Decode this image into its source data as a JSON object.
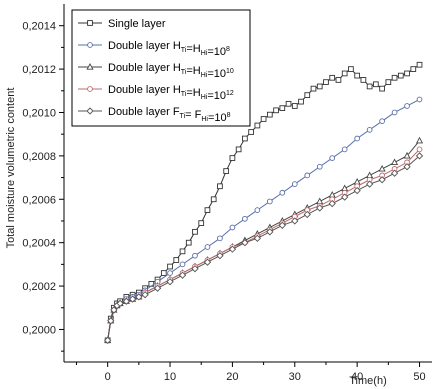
{
  "chart_data": {
    "type": "line",
    "title": "",
    "xlabel": "Time(h)",
    "ylabel": "Total moisture volumetric content",
    "xlim": [
      -7,
      52
    ],
    "ylim": [
      0.19985,
      0.2015
    ],
    "x_ticks": [
      0,
      10,
      20,
      30,
      40,
      50
    ],
    "x_tick_labels": [
      "0",
      "10",
      "20",
      "30",
      "40",
      "50"
    ],
    "y_ticks": [
      0.2,
      0.2002,
      0.2004,
      0.2006,
      0.2008,
      0.201,
      0.2012,
      0.2014
    ],
    "y_tick_labels": [
      "0,2000",
      "0,2002",
      "0,2004",
      "0,2006",
      "0,2008",
      "0,2010",
      "0,2012",
      "0,2014"
    ],
    "grid": false,
    "legend_position": "top-left",
    "series": [
      {
        "name": "Single layer",
        "legend": {
          "main": "Single layer",
          "parts": []
        },
        "marker": "square",
        "color": "#333333",
        "x": [
          0,
          0.5,
          1,
          1.5,
          2,
          3,
          4,
          5,
          6,
          7,
          8,
          9,
          10,
          11,
          12,
          13,
          14,
          15,
          16,
          17,
          18,
          19,
          20,
          21,
          22,
          23,
          24,
          25,
          26,
          27,
          28,
          29,
          30,
          31,
          32,
          33,
          34,
          35,
          36,
          37,
          38,
          39,
          40,
          41,
          42,
          43,
          44,
          45,
          46,
          47,
          48,
          49,
          50
        ],
        "y": [
          0.19995,
          0.20005,
          0.2001,
          0.20012,
          0.20013,
          0.20015,
          0.20016,
          0.20017,
          0.20019,
          0.20021,
          0.20023,
          0.20026,
          0.20029,
          0.20032,
          0.20036,
          0.2004,
          0.20045,
          0.20049,
          0.20055,
          0.2006,
          0.20066,
          0.20073,
          0.20079,
          0.20083,
          0.20088,
          0.20091,
          0.20094,
          0.20097,
          0.20099,
          0.20101,
          0.20102,
          0.20104,
          0.20103,
          0.20105,
          0.20108,
          0.20111,
          0.20112,
          0.20114,
          0.20116,
          0.20115,
          0.20118,
          0.2012,
          0.20117,
          0.20115,
          0.20112,
          0.20113,
          0.20111,
          0.20114,
          0.20116,
          0.20117,
          0.20118,
          0.2012,
          0.20122
        ]
      },
      {
        "name": "Double layer HTi=HHi=10^8",
        "legend": {
          "main": "Double layer H",
          "parts": [
            [
              "Ti",
              "sub"
            ],
            [
              "=H",
              ""
            ],
            [
              "Hi",
              "sub"
            ],
            [
              "=10",
              ""
            ],
            [
              "8",
              "sup"
            ]
          ]
        },
        "marker": "circle",
        "color": "#5a6fa8",
        "x": [
          0,
          0.5,
          1,
          1.5,
          2,
          3,
          4,
          5,
          6,
          8,
          10,
          12,
          14,
          16,
          18,
          20,
          22,
          24,
          26,
          28,
          30,
          32,
          34,
          36,
          38,
          40,
          42,
          44,
          46,
          48,
          50
        ],
        "y": [
          0.19995,
          0.20004,
          0.20009,
          0.20011,
          0.20012,
          0.20014,
          0.20015,
          0.20016,
          0.20018,
          0.20022,
          0.20026,
          0.2003,
          0.20034,
          0.20038,
          0.20042,
          0.20047,
          0.20051,
          0.20055,
          0.20059,
          0.20063,
          0.20067,
          0.20071,
          0.20075,
          0.20079,
          0.20083,
          0.20088,
          0.20092,
          0.20096,
          0.201,
          0.20103,
          0.20106
        ]
      },
      {
        "name": "Double layer HTi=HHi=10^10",
        "legend": {
          "main": "Double layer H",
          "parts": [
            [
              "Ti",
              "sub"
            ],
            [
              "=H",
              ""
            ],
            [
              "Hi",
              "sub"
            ],
            [
              "=10",
              ""
            ],
            [
              "10",
              "sup"
            ]
          ]
        },
        "marker": "triangle",
        "color": "#444444",
        "x": [
          0,
          0.5,
          1,
          1.5,
          2,
          3,
          4,
          5,
          6,
          8,
          10,
          12,
          14,
          16,
          18,
          20,
          22,
          24,
          26,
          28,
          30,
          32,
          34,
          36,
          38,
          40,
          42,
          44,
          46,
          48,
          50
        ],
        "y": [
          0.19995,
          0.20004,
          0.20009,
          0.20011,
          0.20012,
          0.20013,
          0.20014,
          0.20015,
          0.20017,
          0.2002,
          0.20023,
          0.20026,
          0.20029,
          0.20032,
          0.20035,
          0.20038,
          0.20041,
          0.20044,
          0.20047,
          0.2005,
          0.20053,
          0.20056,
          0.20059,
          0.20062,
          0.20065,
          0.20068,
          0.20071,
          0.20074,
          0.20077,
          0.2008,
          0.20087
        ]
      },
      {
        "name": "Double layer HTi=HHi=10^12",
        "legend": {
          "main": "Double layer H",
          "parts": [
            [
              "Ti",
              "sub"
            ],
            [
              "=H",
              ""
            ],
            [
              "Hi",
              "sub"
            ],
            [
              "=10",
              ""
            ],
            [
              "12",
              "sup"
            ]
          ]
        },
        "marker": "circle",
        "color": "#c06a6a",
        "x": [
          0,
          0.5,
          1,
          1.5,
          2,
          3,
          4,
          5,
          6,
          8,
          10,
          12,
          14,
          16,
          18,
          20,
          22,
          24,
          26,
          28,
          30,
          32,
          34,
          36,
          38,
          40,
          42,
          44,
          46,
          48,
          50
        ],
        "y": [
          0.19995,
          0.20004,
          0.20009,
          0.20011,
          0.20012,
          0.20013,
          0.20014,
          0.20015,
          0.20017,
          0.2002,
          0.20023,
          0.20026,
          0.20029,
          0.20032,
          0.20035,
          0.20038,
          0.2004,
          0.20043,
          0.20046,
          0.20049,
          0.20052,
          0.20055,
          0.20057,
          0.2006,
          0.20063,
          0.20066,
          0.20069,
          0.20071,
          0.20074,
          0.20077,
          0.20083
        ]
      },
      {
        "name": "Double layer FTi=FHi=10^8",
        "legend": {
          "main": "Double layer F",
          "parts": [
            [
              "Ti",
              "sub"
            ],
            [
              "= F",
              ""
            ],
            [
              "Hi",
              "sub"
            ],
            [
              "=10",
              ""
            ],
            [
              "8",
              "sup"
            ]
          ]
        },
        "marker": "diamond",
        "color": "#555555",
        "x": [
          0,
          0.5,
          1,
          1.5,
          2,
          3,
          4,
          5,
          6,
          8,
          10,
          12,
          14,
          16,
          18,
          20,
          22,
          24,
          26,
          28,
          30,
          32,
          34,
          36,
          38,
          40,
          42,
          44,
          46,
          48,
          50
        ],
        "y": [
          0.19995,
          0.20004,
          0.20009,
          0.20011,
          0.20012,
          0.20013,
          0.20014,
          0.20015,
          0.20016,
          0.20019,
          0.20022,
          0.20025,
          0.20028,
          0.20031,
          0.20034,
          0.20037,
          0.2004,
          0.20042,
          0.20045,
          0.20048,
          0.2005,
          0.20053,
          0.20056,
          0.20058,
          0.20061,
          0.20064,
          0.20067,
          0.20069,
          0.20072,
          0.20075,
          0.2008
        ]
      }
    ]
  }
}
